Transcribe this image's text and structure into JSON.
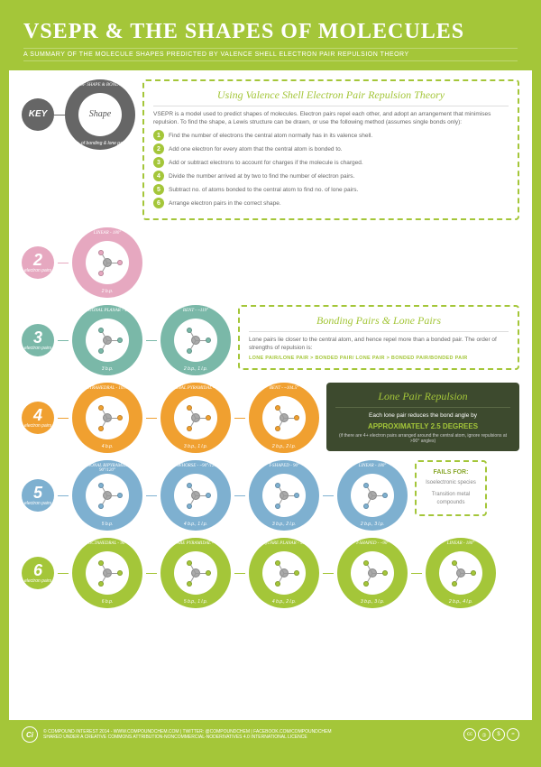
{
  "header": {
    "title": "VSEPR & THE SHAPES OF MOLECULES",
    "subtitle": "A SUMMARY OF THE MOLECULE SHAPES PREDICTED BY VALENCE SHELL ELECTRON PAIR REPULSION THEORY"
  },
  "colors": {
    "bg": "#a4c639",
    "key": "#666666",
    "r2": "#e6a8c0",
    "r3": "#7ab8a8",
    "r4": "#f0a030",
    "r5": "#7eb0d0",
    "r6": "#a4c639",
    "dark": "#3d4a2e"
  },
  "key": {
    "label": "KEY",
    "top": "NAME OF SHAPE & BOND ANGLE",
    "center": "Shape",
    "bottom": "No. of bonding & lone pairs"
  },
  "usage": {
    "title": "Using Valence Shell Electron Pair Repulsion Theory",
    "intro": "VSEPR is a model used to predict shapes of molecules. Electron pairs repel each other, and adopt an arrangement that minimises repulsion. To find the shape, a Lewis structure can be drawn, or use the following method (assumes single bonds only):",
    "steps": [
      "Find the number of electrons the central atom normally has in its valence shell.",
      "Add one electron for every atom that the central atom is bonded to.",
      "Add or subtract electrons to account for charges if the molecule is charged.",
      "Divide the number arrived at by two to find the number of electron pairs.",
      "Subtract no. of atoms bonded to the central atom to find no. of lone pairs.",
      "Arrange electron pairs in the correct shape."
    ]
  },
  "bonding": {
    "title": "Bonding Pairs & Lone Pairs",
    "text": "Lone pairs lie closer to the central atom, and hence repel more than a bonded pair. The order of strengths of repulsion is:",
    "order": "LONE PAIR/LONE PAIR > BONDED PAIR/ LONE PAIR > BONDED PAIR/BONDED PAIR"
  },
  "lonepair": {
    "title": "Lone Pair Repulsion",
    "text": "Each lone pair reduces the bond angle by",
    "emphasis": "APPROXIMATELY 2.5 DEGREES",
    "note": "(if there are 4+ electron pairs arranged around the central atom, ignore repulsions at >90° angles)"
  },
  "fails": {
    "title": "FAILS FOR:",
    "items": [
      "Isoelectronic species",
      "Transition metal compounds"
    ]
  },
  "rows": [
    {
      "n": "2",
      "label": "electron pairs",
      "color": "#e6a8c0",
      "shapes": [
        {
          "name": "LINEAR - 180°",
          "bp": "2 b.p."
        }
      ],
      "size": 78
    },
    {
      "n": "3",
      "label": "electron pairs",
      "color": "#7ab8a8",
      "shapes": [
        {
          "name": "TRIGONAL PLANAR - 120°",
          "bp": "3 b.p."
        },
        {
          "name": "BENT - ~119°",
          "bp": "2 b.p., 1 l.p."
        }
      ],
      "size": 78
    },
    {
      "n": "4",
      "label": "electron pairs",
      "color": "#f0a030",
      "shapes": [
        {
          "name": "TETRAHEDRAL - 109.5°",
          "bp": "4 b.p."
        },
        {
          "name": "TRIGONAL PYRAMIDAL - ~107°",
          "bp": "3 b.p., 1 l.p."
        },
        {
          "name": "BENT - ~104.5°",
          "bp": "2 b.p., 2 l.p."
        }
      ],
      "size": 78
    },
    {
      "n": "5",
      "label": "electron pairs",
      "color": "#7eb0d0",
      "shapes": [
        {
          "name": "TRIGONAL BIPYRAMIDAL - 90°/120°",
          "bp": "5 b.p."
        },
        {
          "name": "SAWHORSE - ~90°/120°",
          "bp": "4 b.p., 1 l.p."
        },
        {
          "name": "T-SHAPED - 90°",
          "bp": "3 b.p., 2 l.p."
        },
        {
          "name": "LINEAR - 180°",
          "bp": "2 b.p., 3 l.p."
        }
      ],
      "size": 78
    },
    {
      "n": "6",
      "label": "electron pairs",
      "color": "#a4c639",
      "shapes": [
        {
          "name": "OCTAHEDRAL - 90°",
          "bp": "6 b.p."
        },
        {
          "name": "SQUARE PYRAMIDAL - ~90°",
          "bp": "5 b.p., 1 l.p."
        },
        {
          "name": "SQUARE PLANAR - 90°",
          "bp": "4 b.p., 2 l.p."
        },
        {
          "name": "T-SHAPED - ~90°",
          "bp": "3 b.p., 3 l.p."
        },
        {
          "name": "LINEAR - 180°",
          "bp": "2 b.p., 4 l.p."
        }
      ],
      "size": 78
    }
  ],
  "footer": {
    "line1": "© COMPOUND INTEREST 2014 - WWW.COMPOUNDCHEM.COM | TWITTER: @COMPOUNDCHEM | FACEBOOK.COM/COMPOUNDCHEM",
    "line2": "SHARED UNDER A CREATIVE COMMONS ATTRIBUTION-NONCOMMERCIAL-NODERIVATIVES 4.0 INTERNATIONAL LICENCE",
    "ci": "Ci",
    "cc": [
      "cc",
      "🄯",
      "$",
      "="
    ]
  }
}
